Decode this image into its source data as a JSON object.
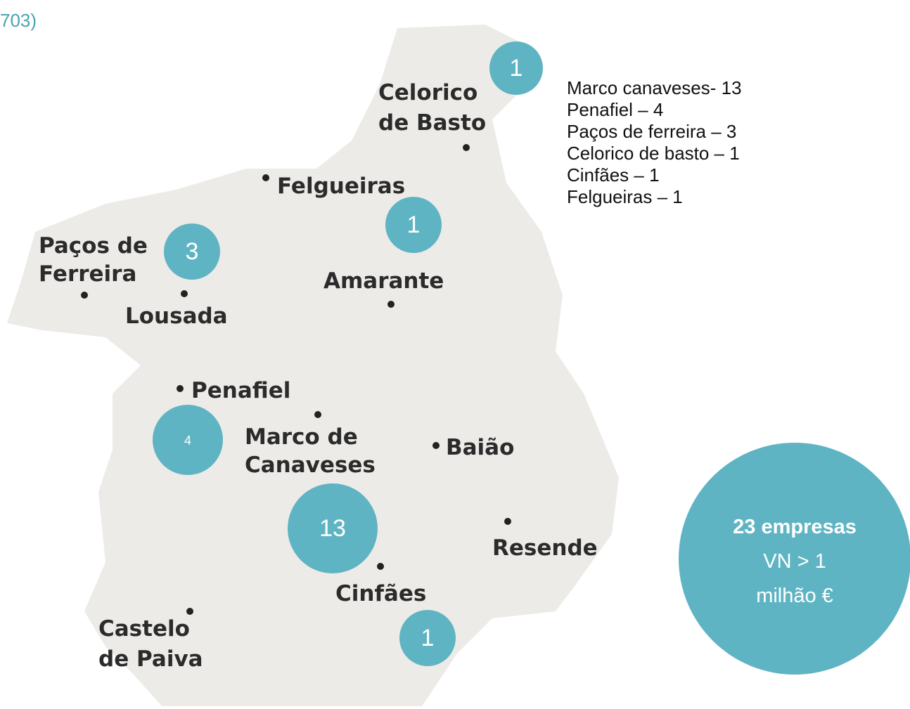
{
  "header": {
    "fragment": "703)"
  },
  "towns": [
    {
      "lines": [
        "Celorico",
        "de Basto"
      ]
    },
    {
      "lines": [
        "Felgueiras"
      ]
    },
    {
      "lines": [
        "Paços de",
        "Ferreira"
      ]
    },
    {
      "lines": [
        "Lousada"
      ]
    },
    {
      "lines": [
        "Amarante"
      ]
    },
    {
      "lines": [
        "Penafiel"
      ]
    },
    {
      "lines": [
        "Marco de",
        "Canaveses"
      ]
    },
    {
      "lines": [
        "Baião"
      ]
    },
    {
      "lines": [
        "Resende"
      ]
    },
    {
      "lines": [
        "Cinfães"
      ]
    },
    {
      "lines": [
        "Castelo",
        "de Paiva"
      ]
    }
  ],
  "bubbles": [
    {
      "count": "1"
    },
    {
      "count": "1"
    },
    {
      "count": "3"
    },
    {
      "count": "4"
    },
    {
      "count": "13"
    },
    {
      "count": "1"
    }
  ],
  "counts_list": [
    "Marco canaveses- 13",
    "Penafiel – 4",
    "Paços de ferreira – 3",
    "Celorico de basto – 1",
    "Cinfães – 1",
    "Felgueiras – 1"
  ],
  "summary": {
    "title": "23 empresas",
    "line1": "VN > 1",
    "line2": "milhão €"
  }
}
